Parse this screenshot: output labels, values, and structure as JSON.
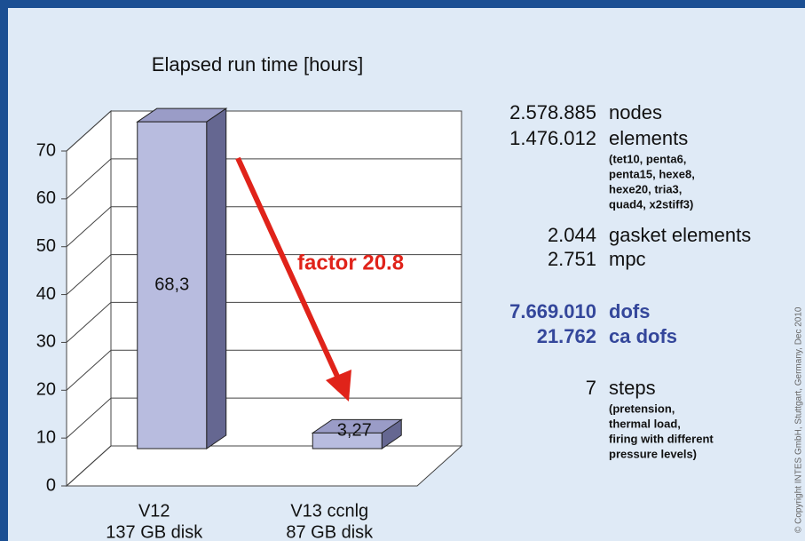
{
  "chart_data": {
    "type": "bar",
    "title": "Elapsed run time [hours]",
    "categories": [
      "V12",
      "V13 ccnlg"
    ],
    "category_sublabels": [
      "137 GB disk",
      "87 GB disk"
    ],
    "values": [
      68.3,
      3.27
    ],
    "value_labels": [
      "68,3",
      "3,27"
    ],
    "color": "#b8bcdf",
    "ylim": [
      0,
      70
    ],
    "yticks": [
      0,
      10,
      20,
      30,
      40,
      50,
      60,
      70
    ],
    "grid": true,
    "annotation": "factor 20.8"
  },
  "facts": [
    {
      "number": "2.578.885",
      "label": "nodes"
    },
    {
      "number": "1.476.012",
      "label": "elements",
      "details": [
        "(tet10, penta6,",
        "penta15, hexe8,",
        "hexe20, tria3,",
        "quad4, x2stiff3)"
      ]
    },
    {
      "number": "2.044",
      "label": "gasket elements"
    },
    {
      "number": "2.751",
      "label": "mpc"
    },
    {
      "number": "7.669.010",
      "label": "dofs",
      "highlight": true
    },
    {
      "number": "21.762",
      "label": "ca dofs",
      "highlight": true
    },
    {
      "number": "7",
      "label": "steps",
      "details": [
        "(pretension,",
        "thermal load,",
        "firing with different",
        "pressure levels)"
      ]
    }
  ],
  "copyright": "© Copyright INTES GmbH, Stuttgart, Germany, Dec 2010"
}
